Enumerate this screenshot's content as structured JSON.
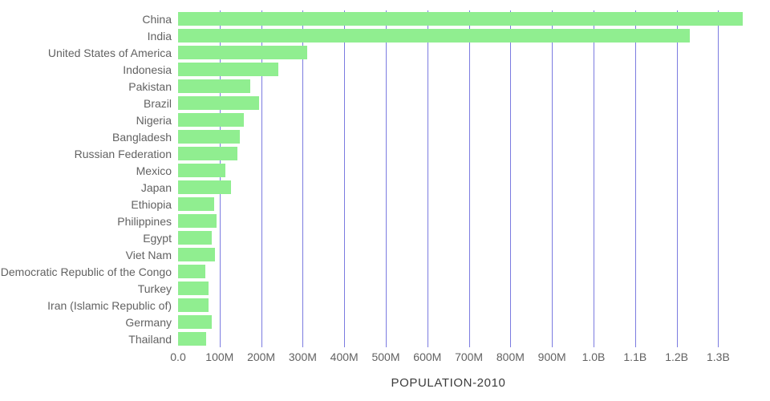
{
  "chart_data": {
    "type": "bar",
    "orientation": "horizontal",
    "title": "",
    "xlabel": "POPULATION-2010",
    "ylabel": "",
    "categories": [
      "China",
      "India",
      "United States of America",
      "Indonesia",
      "Pakistan",
      "Brazil",
      "Nigeria",
      "Bangladesh",
      "Russian Federation",
      "Mexico",
      "Japan",
      "Ethiopia",
      "Philippines",
      "Egypt",
      "Viet Nam",
      "Democratic Republic of the Congo",
      "Turkey",
      "Iran (Islamic Republic of)",
      "Germany",
      "Thailand"
    ],
    "values_millions": [
      1360,
      1231,
      310,
      242,
      174,
      195,
      159,
      149,
      143,
      114,
      128,
      87,
      93,
      81,
      88,
      66,
      73,
      74,
      81,
      67
    ],
    "x_ticks": [
      "0.0",
      "100M",
      "200M",
      "300M",
      "400M",
      "500M",
      "600M",
      "700M",
      "800M",
      "900M",
      "1.0B",
      "1.1B",
      "1.2B",
      "1.3B"
    ],
    "x_tick_values_millions": [
      0,
      100,
      200,
      300,
      400,
      500,
      600,
      700,
      800,
      900,
      1000,
      1100,
      1200,
      1300
    ],
    "xlim_millions": [
      0,
      1420
    ],
    "grid": true,
    "legend": "none",
    "bar_color": "#90ee90",
    "gridline_color": "#7b7be0",
    "label_color": "#626262",
    "title_color": "#3c3c3c"
  }
}
